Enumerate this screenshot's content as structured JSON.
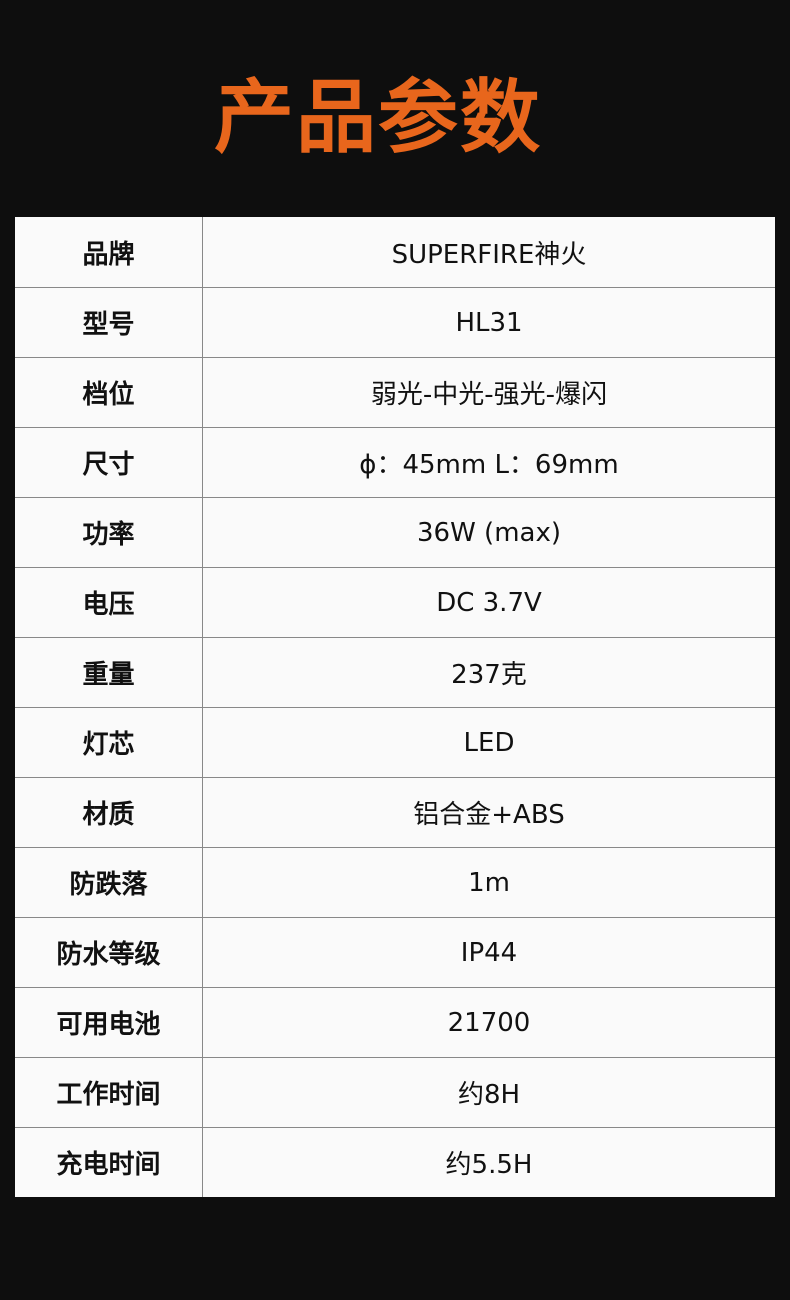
{
  "title": "产品参数",
  "accent_color": "#e8661c",
  "specs": [
    {
      "label": "品牌",
      "value": "SUPERFIRE神火"
    },
    {
      "label": "型号",
      "value": "HL31"
    },
    {
      "label": "档位",
      "value": "弱光-中光-强光-爆闪"
    },
    {
      "label": "尺寸",
      "value": "ϕ：45mm L：69mm"
    },
    {
      "label": "功率",
      "value": "36W (max)"
    },
    {
      "label": "电压",
      "value": "DC  3.7V"
    },
    {
      "label": "重量",
      "value": "237克"
    },
    {
      "label": "灯芯",
      "value": "LED"
    },
    {
      "label": "材质",
      "value": "铝合金+ABS"
    },
    {
      "label": "防跌落",
      "value": "1m"
    },
    {
      "label": "防水等级",
      "value": "IP44"
    },
    {
      "label": "可用电池",
      "value": "21700"
    },
    {
      "label": "工作时间",
      "value": "约8H"
    },
    {
      "label": "充电时间",
      "value": "约5.5H"
    }
  ]
}
